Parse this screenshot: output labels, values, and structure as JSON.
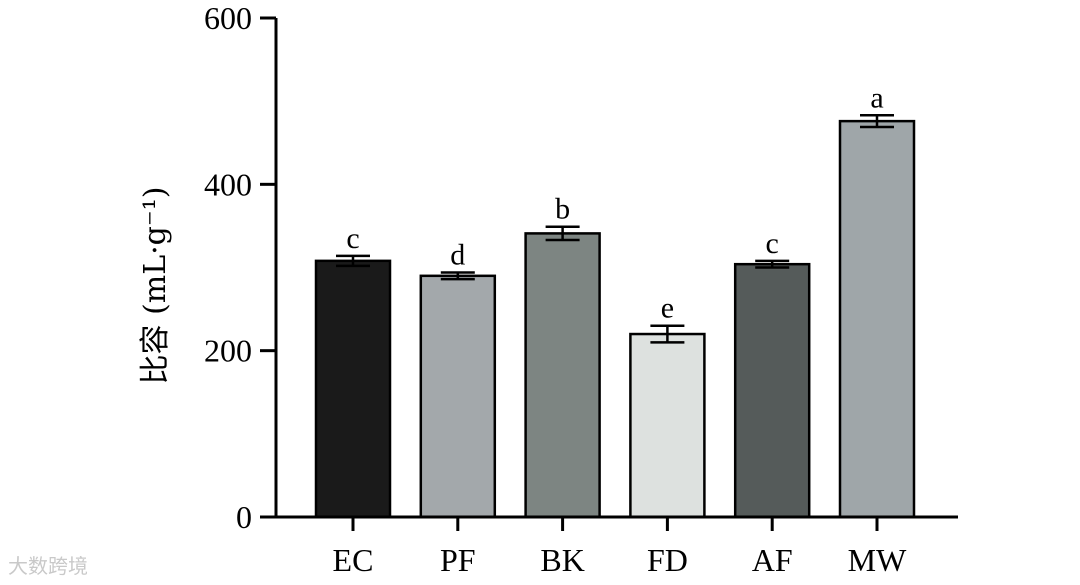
{
  "watermark": "大数跨境",
  "chart_data": {
    "type": "bar",
    "title": "",
    "xlabel": "",
    "ylabel": "比容 (mL·g⁻¹)",
    "ylim": [
      0,
      600
    ],
    "yticks": [
      0,
      200,
      400,
      600
    ],
    "grid": false,
    "categories": [
      "EC",
      "PF",
      "BK",
      "FD",
      "AF",
      "MW"
    ],
    "values": [
      308,
      290,
      341,
      220,
      304,
      476
    ],
    "errors": [
      6,
      4,
      8,
      10,
      4,
      7
    ],
    "significance": [
      "c",
      "d",
      "b",
      "e",
      "c",
      "a"
    ],
    "colors": [
      "#1a1a1a",
      "#a3a8ab",
      "#7d8582",
      "#dde1df",
      "#555b5a",
      "#9fa6a9"
    ]
  }
}
